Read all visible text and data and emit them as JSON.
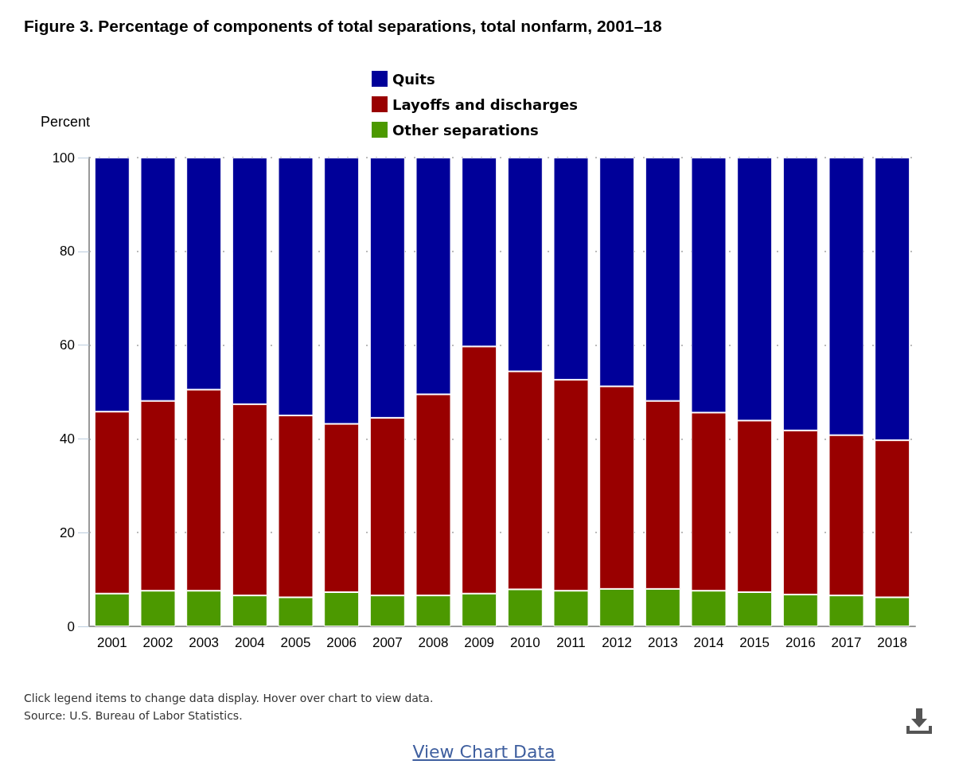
{
  "chart_data": {
    "type": "bar",
    "title": "Figure 3. Percentage of components of total separations, total nonfarm, 2001–18",
    "ylabel": "Percent",
    "categories": [
      "2001",
      "2002",
      "2003",
      "2004",
      "2005",
      "2006",
      "2007",
      "2008",
      "2009",
      "2010",
      "2011",
      "2012",
      "2013",
      "2014",
      "2015",
      "2016",
      "2017",
      "2018"
    ],
    "stacked": true,
    "series": [
      {
        "name": "Other separations",
        "color": "#4c9900",
        "values": [
          7.0,
          7.6,
          7.6,
          6.6,
          6.2,
          7.3,
          6.6,
          6.6,
          7.0,
          7.9,
          7.6,
          8.0,
          8.0,
          7.6,
          7.3,
          6.8,
          6.6,
          6.2
        ]
      },
      {
        "name": "Layoffs and discharges",
        "color": "#990000",
        "values": [
          38.8,
          40.5,
          42.9,
          40.8,
          38.8,
          35.9,
          37.9,
          42.9,
          52.7,
          46.5,
          45.0,
          43.2,
          40.1,
          38.0,
          36.6,
          35.0,
          34.2,
          33.5
        ]
      },
      {
        "name": "Quits",
        "color": "#000099",
        "values": [
          54.2,
          51.9,
          49.5,
          52.6,
          55.0,
          56.8,
          55.5,
          50.5,
          40.3,
          45.6,
          47.4,
          48.8,
          51.9,
          54.4,
          56.1,
          58.2,
          59.2,
          60.3
        ]
      }
    ],
    "ylim": [
      0,
      100
    ],
    "yticks": [
      0,
      20,
      40,
      60,
      80,
      100
    ],
    "grid": "y",
    "legend": "top",
    "annotations": [
      "Click legend items to change data display. Hover over chart to view data.",
      "Source: U.S. Bureau of Labor Statistics.",
      "View Chart Data"
    ]
  }
}
